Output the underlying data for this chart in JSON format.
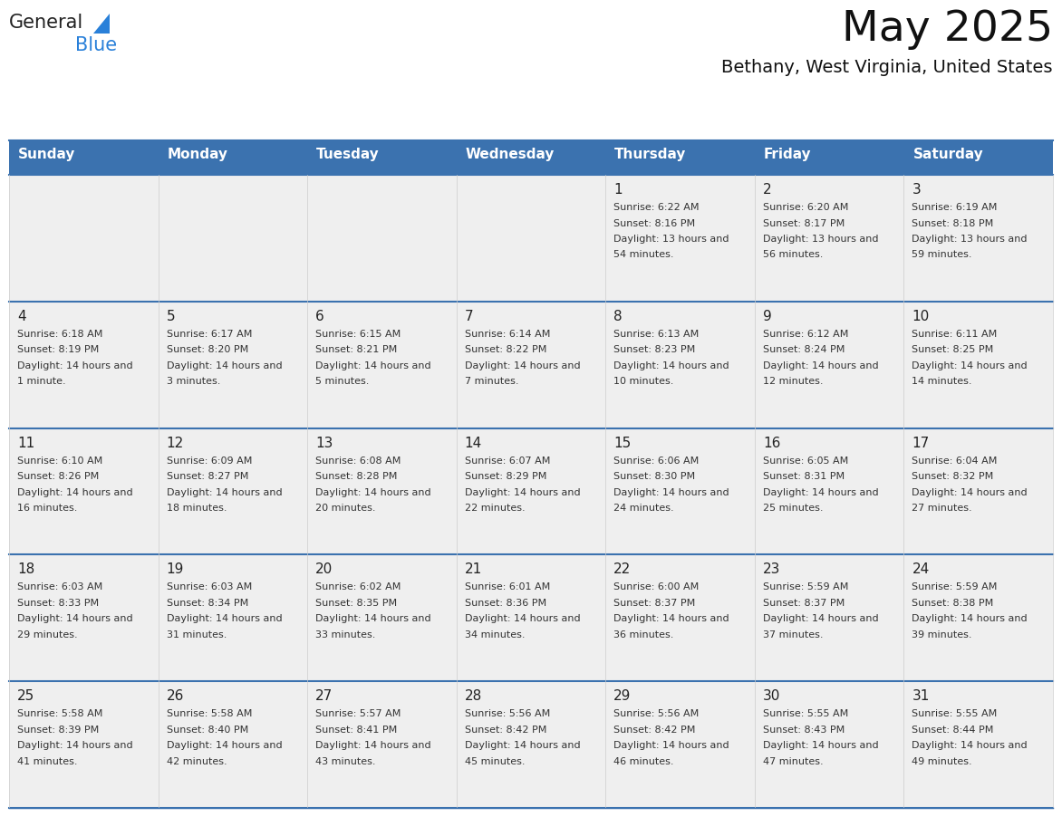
{
  "title": "May 2025",
  "subtitle": "Bethany, West Virginia, United States",
  "header_color": "#3B72AF",
  "header_text_color": "#FFFFFF",
  "cell_bg": "#EFEFEF",
  "cell_bg_white": "#FFFFFF",
  "day_names": [
    "Sunday",
    "Monday",
    "Tuesday",
    "Wednesday",
    "Thursday",
    "Friday",
    "Saturday"
  ],
  "text_color": "#333333",
  "line_color": "#3B72AF",
  "row_separator_color": "#3B72AF",
  "logo_color1": "#222222",
  "logo_color2": "#2980D9",
  "logo_triangle_color": "#2980D9",
  "days": [
    {
      "day": 1,
      "col": 4,
      "row": 0,
      "sunrise": "6:22 AM",
      "sunset": "8:16 PM",
      "daylight": "13 hours and 54 minutes."
    },
    {
      "day": 2,
      "col": 5,
      "row": 0,
      "sunrise": "6:20 AM",
      "sunset": "8:17 PM",
      "daylight": "13 hours and 56 minutes."
    },
    {
      "day": 3,
      "col": 6,
      "row": 0,
      "sunrise": "6:19 AM",
      "sunset": "8:18 PM",
      "daylight": "13 hours and 59 minutes."
    },
    {
      "day": 4,
      "col": 0,
      "row": 1,
      "sunrise": "6:18 AM",
      "sunset": "8:19 PM",
      "daylight": "14 hours and 1 minute."
    },
    {
      "day": 5,
      "col": 1,
      "row": 1,
      "sunrise": "6:17 AM",
      "sunset": "8:20 PM",
      "daylight": "14 hours and 3 minutes."
    },
    {
      "day": 6,
      "col": 2,
      "row": 1,
      "sunrise": "6:15 AM",
      "sunset": "8:21 PM",
      "daylight": "14 hours and 5 minutes."
    },
    {
      "day": 7,
      "col": 3,
      "row": 1,
      "sunrise": "6:14 AM",
      "sunset": "8:22 PM",
      "daylight": "14 hours and 7 minutes."
    },
    {
      "day": 8,
      "col": 4,
      "row": 1,
      "sunrise": "6:13 AM",
      "sunset": "8:23 PM",
      "daylight": "14 hours and 10 minutes."
    },
    {
      "day": 9,
      "col": 5,
      "row": 1,
      "sunrise": "6:12 AM",
      "sunset": "8:24 PM",
      "daylight": "14 hours and 12 minutes."
    },
    {
      "day": 10,
      "col": 6,
      "row": 1,
      "sunrise": "6:11 AM",
      "sunset": "8:25 PM",
      "daylight": "14 hours and 14 minutes."
    },
    {
      "day": 11,
      "col": 0,
      "row": 2,
      "sunrise": "6:10 AM",
      "sunset": "8:26 PM",
      "daylight": "14 hours and 16 minutes."
    },
    {
      "day": 12,
      "col": 1,
      "row": 2,
      "sunrise": "6:09 AM",
      "sunset": "8:27 PM",
      "daylight": "14 hours and 18 minutes."
    },
    {
      "day": 13,
      "col": 2,
      "row": 2,
      "sunrise": "6:08 AM",
      "sunset": "8:28 PM",
      "daylight": "14 hours and 20 minutes."
    },
    {
      "day": 14,
      "col": 3,
      "row": 2,
      "sunrise": "6:07 AM",
      "sunset": "8:29 PM",
      "daylight": "14 hours and 22 minutes."
    },
    {
      "day": 15,
      "col": 4,
      "row": 2,
      "sunrise": "6:06 AM",
      "sunset": "8:30 PM",
      "daylight": "14 hours and 24 minutes."
    },
    {
      "day": 16,
      "col": 5,
      "row": 2,
      "sunrise": "6:05 AM",
      "sunset": "8:31 PM",
      "daylight": "14 hours and 25 minutes."
    },
    {
      "day": 17,
      "col": 6,
      "row": 2,
      "sunrise": "6:04 AM",
      "sunset": "8:32 PM",
      "daylight": "14 hours and 27 minutes."
    },
    {
      "day": 18,
      "col": 0,
      "row": 3,
      "sunrise": "6:03 AM",
      "sunset": "8:33 PM",
      "daylight": "14 hours and 29 minutes."
    },
    {
      "day": 19,
      "col": 1,
      "row": 3,
      "sunrise": "6:03 AM",
      "sunset": "8:34 PM",
      "daylight": "14 hours and 31 minutes."
    },
    {
      "day": 20,
      "col": 2,
      "row": 3,
      "sunrise": "6:02 AM",
      "sunset": "8:35 PM",
      "daylight": "14 hours and 33 minutes."
    },
    {
      "day": 21,
      "col": 3,
      "row": 3,
      "sunrise": "6:01 AM",
      "sunset": "8:36 PM",
      "daylight": "14 hours and 34 minutes."
    },
    {
      "day": 22,
      "col": 4,
      "row": 3,
      "sunrise": "6:00 AM",
      "sunset": "8:37 PM",
      "daylight": "14 hours and 36 minutes."
    },
    {
      "day": 23,
      "col": 5,
      "row": 3,
      "sunrise": "5:59 AM",
      "sunset": "8:37 PM",
      "daylight": "14 hours and 37 minutes."
    },
    {
      "day": 24,
      "col": 6,
      "row": 3,
      "sunrise": "5:59 AM",
      "sunset": "8:38 PM",
      "daylight": "14 hours and 39 minutes."
    },
    {
      "day": 25,
      "col": 0,
      "row": 4,
      "sunrise": "5:58 AM",
      "sunset": "8:39 PM",
      "daylight": "14 hours and 41 minutes."
    },
    {
      "day": 26,
      "col": 1,
      "row": 4,
      "sunrise": "5:58 AM",
      "sunset": "8:40 PM",
      "daylight": "14 hours and 42 minutes."
    },
    {
      "day": 27,
      "col": 2,
      "row": 4,
      "sunrise": "5:57 AM",
      "sunset": "8:41 PM",
      "daylight": "14 hours and 43 minutes."
    },
    {
      "day": 28,
      "col": 3,
      "row": 4,
      "sunrise": "5:56 AM",
      "sunset": "8:42 PM",
      "daylight": "14 hours and 45 minutes."
    },
    {
      "day": 29,
      "col": 4,
      "row": 4,
      "sunrise": "5:56 AM",
      "sunset": "8:42 PM",
      "daylight": "14 hours and 46 minutes."
    },
    {
      "day": 30,
      "col": 5,
      "row": 4,
      "sunrise": "5:55 AM",
      "sunset": "8:43 PM",
      "daylight": "14 hours and 47 minutes."
    },
    {
      "day": 31,
      "col": 6,
      "row": 4,
      "sunrise": "5:55 AM",
      "sunset": "8:44 PM",
      "daylight": "14 hours and 49 minutes."
    }
  ]
}
